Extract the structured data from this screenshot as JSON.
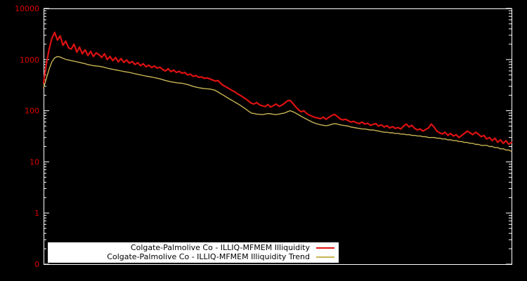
{
  "chart_data": {
    "type": "line",
    "title": "",
    "background_color": "#000000",
    "plot_border_color": "#ffffff",
    "axis_tick_label_color": "#dd0000",
    "y_scale": "log",
    "y_ticks": [
      {
        "label": "10000",
        "value": 10000
      },
      {
        "label": "1000",
        "value": 1000
      },
      {
        "label": "100",
        "value": 100
      },
      {
        "label": "10",
        "value": 10
      },
      {
        "label": "1",
        "value": 1
      },
      {
        "label": "0",
        "value": 0.1
      }
    ],
    "x_axis": {
      "tick_labels": [],
      "label": ""
    },
    "legend": {
      "position": "bottom-center",
      "background": "#ffffff",
      "text_color": "#000000"
    },
    "series": [
      {
        "name": "Colgate-Palmolive Co - ILLIQ-MFMEM Illiquidity",
        "color": "#dd1111",
        "line_width": 2.2,
        "values": [
          350,
          800,
          1600,
          2600,
          3400,
          2400,
          2900,
          1900,
          2300,
          1700,
          1600,
          2000,
          1400,
          1750,
          1300,
          1550,
          1200,
          1450,
          1150,
          1350,
          1250,
          1100,
          1300,
          1000,
          1150,
          950,
          1100,
          900,
          1050,
          880,
          980,
          850,
          920,
          800,
          870,
          760,
          830,
          720,
          780,
          700,
          750,
          680,
          710,
          640,
          600,
          660,
          580,
          620,
          560,
          590,
          540,
          560,
          500,
          520,
          470,
          490,
          450,
          460,
          430,
          440,
          420,
          400,
          380,
          390,
          340,
          310,
          290,
          270,
          250,
          235,
          215,
          200,
          185,
          170,
          155,
          140,
          135,
          145,
          130,
          125,
          120,
          132,
          118,
          126,
          135,
          122,
          128,
          140,
          155,
          160,
          140,
          120,
          105,
          95,
          100,
          88,
          82,
          78,
          74,
          72,
          70,
          75,
          68,
          74,
          80,
          85,
          78,
          70,
          66,
          68,
          64,
          60,
          62,
          58,
          56,
          60,
          55,
          57,
          52,
          54,
          56,
          50,
          53,
          48,
          51,
          46,
          49,
          45,
          47,
          44,
          50,
          55,
          48,
          52,
          45,
          42,
          44,
          40,
          43,
          46,
          55,
          48,
          40,
          37,
          35,
          38,
          33,
          36,
          32,
          34,
          30,
          33,
          36,
          40,
          37,
          34,
          38,
          35,
          31,
          33,
          28,
          30,
          26,
          29,
          24,
          27,
          23,
          26,
          22,
          24
        ]
      },
      {
        "name": "Colgate-Palmolive Co - ILLIQ-MFMEM Illiquidity Trend",
        "color": "#c8b454",
        "line_width": 1.4,
        "values": [
          280,
          420,
          650,
          900,
          1080,
          1150,
          1120,
          1060,
          1010,
          980,
          955,
          930,
          905,
          880,
          855,
          830,
          800,
          780,
          760,
          750,
          740,
          725,
          705,
          680,
          660,
          645,
          630,
          615,
          600,
          585,
          573,
          560,
          545,
          530,
          515,
          500,
          488,
          476,
          465,
          455,
          444,
          432,
          420,
          405,
          390,
          378,
          368,
          360,
          352,
          348,
          344,
          335,
          325,
          312,
          300,
          290,
          282,
          276,
          271,
          268,
          266,
          258,
          250,
          232,
          215,
          200,
          185,
          172,
          160,
          148,
          138,
          128,
          118,
          108,
          98,
          90,
          88,
          86,
          85,
          84,
          86,
          88,
          87,
          85,
          84,
          86,
          88,
          90,
          95,
          100,
          96,
          90,
          84,
          78,
          73,
          68,
          64,
          60,
          57,
          55,
          53,
          52,
          51,
          52,
          54,
          56,
          55,
          53,
          52,
          51,
          50,
          48,
          47,
          46,
          45,
          44,
          44,
          43,
          42,
          42,
          41,
          40,
          39,
          38,
          38,
          37,
          37,
          36,
          36,
          35,
          35,
          34,
          34,
          33,
          33,
          32,
          32,
          31,
          31,
          30,
          30,
          30,
          29,
          29,
          28,
          28,
          27,
          27,
          26,
          26,
          25,
          25,
          24,
          24,
          23,
          23,
          22,
          22,
          21,
          21,
          21,
          20,
          20,
          19,
          19,
          18,
          18,
          17,
          17,
          16
        ]
      }
    ]
  }
}
